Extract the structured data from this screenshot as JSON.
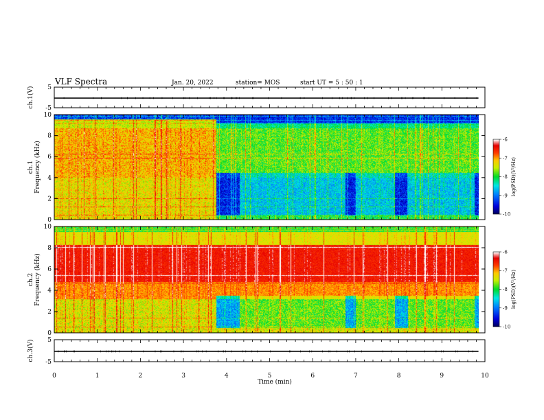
{
  "header": {
    "title": "VLF Spectra",
    "date": "Jan. 20, 2022",
    "station": "station= MOS",
    "start": "start  UT  =   5 : 50 : 1"
  },
  "chart_data": [
    {
      "type": "line",
      "panel": "ch1-voltage",
      "ylabel": "ch.1(V)",
      "ylim": [
        -5,
        5
      ],
      "yticks": [
        "5",
        "-5"
      ],
      "series": [
        {
          "x": [
            0,
            9.85
          ],
          "values": [
            -0.3,
            -0.3
          ]
        }
      ]
    },
    {
      "type": "heatmap",
      "panel": "ch1-spectrogram",
      "ylabel": "ch.1\nFrequency (kHz)",
      "ylim": [
        0,
        10
      ],
      "yticks": [
        "0",
        "2",
        "4",
        "6",
        "8",
        "10"
      ],
      "xlim": [
        0,
        9.85
      ],
      "noise_floor_drops_min": [
        [
          3.75,
          4.3
        ],
        [
          6.75,
          7.0
        ],
        [
          7.9,
          8.2
        ],
        [
          9.75,
          9.85
        ]
      ],
      "colorbar": {
        "label": "log(PSD)(V²/Hz)",
        "range": [
          -10,
          -6
        ],
        "ticks": [
          "-6",
          "-7",
          "-8",
          "-9",
          "-10"
        ]
      }
    },
    {
      "type": "heatmap",
      "panel": "ch2-spectrogram",
      "ylabel": "ch.2\nFrequency (kHz)",
      "ylim": [
        0,
        10
      ],
      "yticks": [
        "0",
        "2",
        "4",
        "6",
        "8",
        "10"
      ],
      "xlim": [
        0,
        9.85
      ],
      "noise_floor_drops_min": [
        [
          3.75,
          4.3
        ],
        [
          6.75,
          7.0
        ],
        [
          7.9,
          8.2
        ],
        [
          9.75,
          9.85
        ]
      ],
      "colorbar": {
        "label": "log(PSD)(V²/Hz)",
        "range": [
          -10,
          -6
        ],
        "ticks": [
          "-6",
          "-7",
          "-8",
          "-9",
          "-10"
        ]
      }
    },
    {
      "type": "line",
      "panel": "ch3-voltage",
      "ylabel": "ch.3(V)",
      "ylim": [
        -5,
        5
      ],
      "yticks": [
        "5",
        "-5"
      ],
      "xlabel": "Time (min)",
      "xlim": [
        0,
        10
      ],
      "xticks": [
        "0",
        "1",
        "2",
        "3",
        "4",
        "5",
        "6",
        "7",
        "8",
        "9",
        "10"
      ],
      "series": [
        {
          "x": [
            0,
            9.85
          ],
          "values": [
            -0.3,
            -0.3
          ]
        }
      ]
    }
  ]
}
